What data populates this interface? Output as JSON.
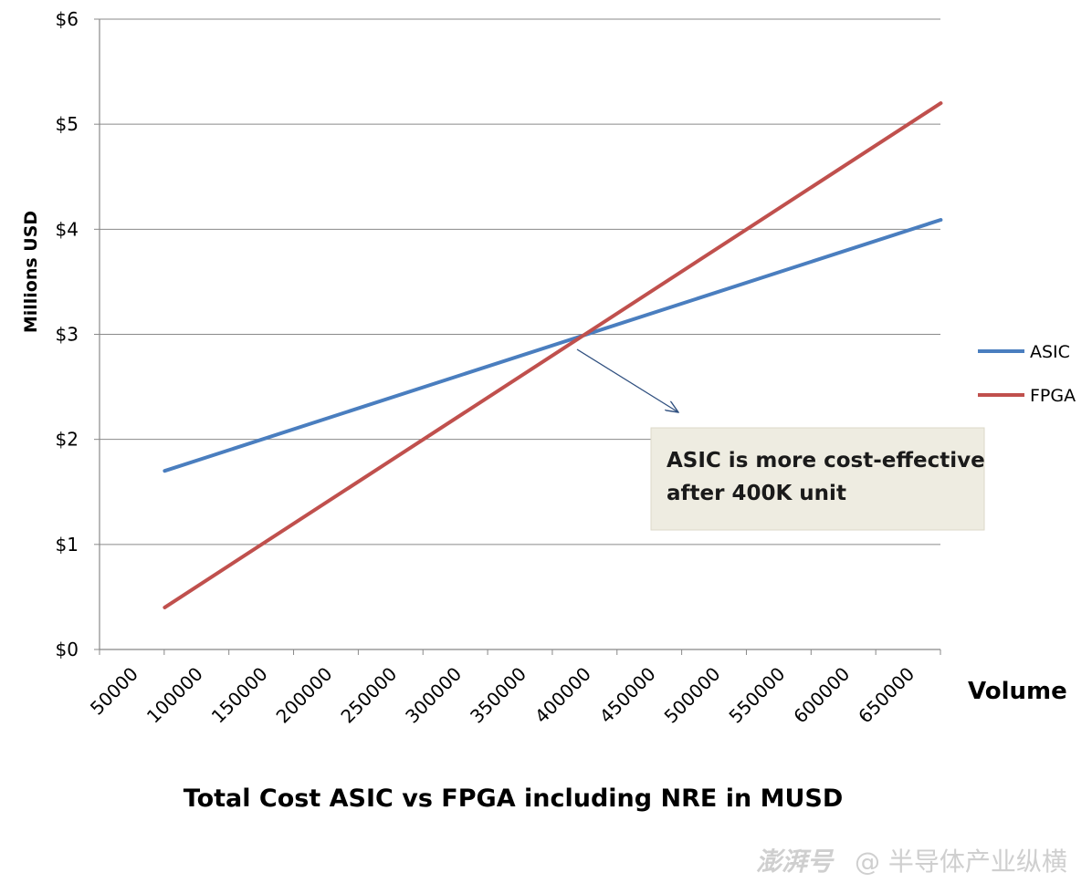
{
  "chart_data": {
    "type": "line",
    "title": "Total Cost ASIC vs FPGA including NRE in MUSD",
    "xlabel": "Volume",
    "ylabel": "Millions  USD",
    "categories": [
      "50000",
      "100000",
      "150000",
      "200000",
      "250000",
      "300000",
      "350000",
      "400000",
      "450000",
      "500000",
      "550000",
      "600000",
      "650000"
    ],
    "x": [
      75000,
      675000
    ],
    "y_ticks": [
      "$0",
      "$1",
      "$2",
      "$3",
      "$4",
      "$5",
      "$6"
    ],
    "ylim": [
      0,
      6
    ],
    "grid": true,
    "legend_position": "right",
    "series": [
      {
        "name": "ASIC",
        "color": "#4a7ebf",
        "x": [
          75000,
          675000
        ],
        "values": [
          1.7,
          4.09
        ]
      },
      {
        "name": "FPGA",
        "color": "#c0504d",
        "x": [
          75000,
          675000
        ],
        "values": [
          0.4,
          5.2
        ]
      }
    ],
    "annotation": {
      "lines": [
        "ASIC is more cost-effective",
        "after 400K unit"
      ],
      "points_to": {
        "x": 400000,
        "y": 3.0
      }
    }
  },
  "watermark": {
    "left": "澎湃号",
    "right": "@ 半导体产业纵横"
  }
}
